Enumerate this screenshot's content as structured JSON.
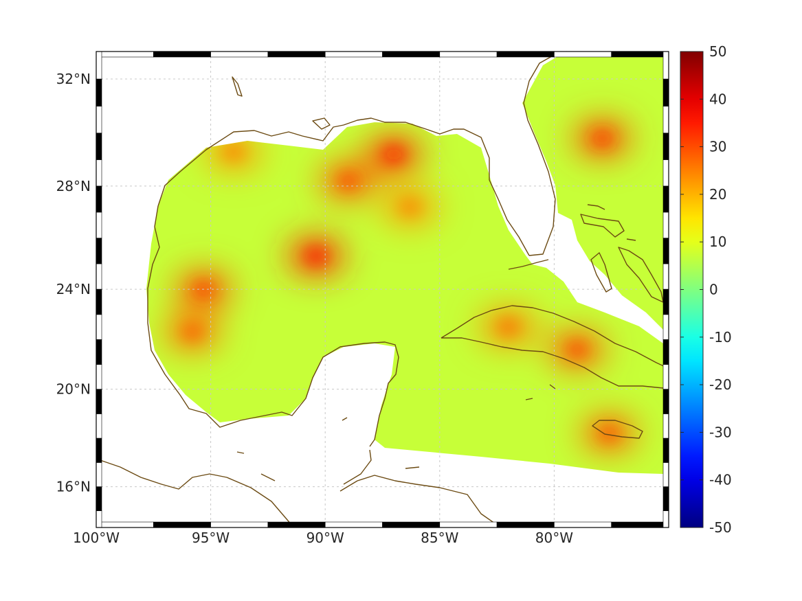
{
  "chart_data": {
    "type": "heatmap",
    "title": "",
    "projection": "mercator",
    "lon_range": [
      -100,
      -75
    ],
    "lat_range": [
      14.3,
      33
    ],
    "grid": true,
    "x_ticks": [
      {
        "value": -100,
        "label": "100°W"
      },
      {
        "value": -95,
        "label": "95°W"
      },
      {
        "value": -90,
        "label": "90°W"
      },
      {
        "value": -85,
        "label": "85°W"
      },
      {
        "value": -80,
        "label": "80°W"
      }
    ],
    "y_ticks": [
      {
        "value": 16,
        "label": "16°N"
      },
      {
        "value": 20,
        "label": "20°N"
      },
      {
        "value": 24,
        "label": "24°N"
      },
      {
        "value": 28,
        "label": "28°N"
      },
      {
        "value": 32,
        "label": "32°N"
      }
    ],
    "colorbar": {
      "colormap": "jet",
      "range": [
        -50,
        50
      ],
      "placement": "right",
      "ticks": [
        {
          "value": 50,
          "label": "50"
        },
        {
          "value": 40,
          "label": "40"
        },
        {
          "value": 30,
          "label": "30"
        },
        {
          "value": 20,
          "label": "20"
        },
        {
          "value": 10,
          "label": "10"
        },
        {
          "value": 0,
          "label": "0"
        },
        {
          "value": -10,
          "label": "-10"
        },
        {
          "value": -20,
          "label": "-20"
        },
        {
          "value": -30,
          "label": "-30"
        },
        {
          "value": -40,
          "label": "-40"
        },
        {
          "value": -50,
          "label": "-50"
        }
      ]
    },
    "background_value": 7,
    "hotspots": [
      {
        "name": "central-gulf-max",
        "lon": -90.4,
        "lat": 25.3,
        "value": 33
      },
      {
        "name": "mississippi-shelf-max",
        "lon": -87.0,
        "lat": 29.2,
        "value": 32
      },
      {
        "name": "louisiana-shelf",
        "lon": -89.0,
        "lat": 28.2,
        "value": 28
      },
      {
        "name": "west-gulf-max",
        "lon": -95.3,
        "lat": 24.0,
        "value": 29
      },
      {
        "name": "bay-of-campeche-west",
        "lon": -95.8,
        "lat": 22.3,
        "value": 26
      },
      {
        "name": "atlantic-offshore-max",
        "lon": -77.9,
        "lat": 29.8,
        "value": 30
      },
      {
        "name": "cuba-east",
        "lon": -79.0,
        "lat": 21.6,
        "value": 28
      },
      {
        "name": "cuba-central",
        "lon": -82.0,
        "lat": 22.5,
        "value": 24
      },
      {
        "name": "jamaica",
        "lon": -77.6,
        "lat": 18.2,
        "value": 27
      },
      {
        "name": "texas-coast",
        "lon": -94.0,
        "lat": 29.3,
        "value": 22
      },
      {
        "name": "north-florida-shelf",
        "lon": -86.3,
        "lat": 27.2,
        "value": 22
      }
    ]
  }
}
